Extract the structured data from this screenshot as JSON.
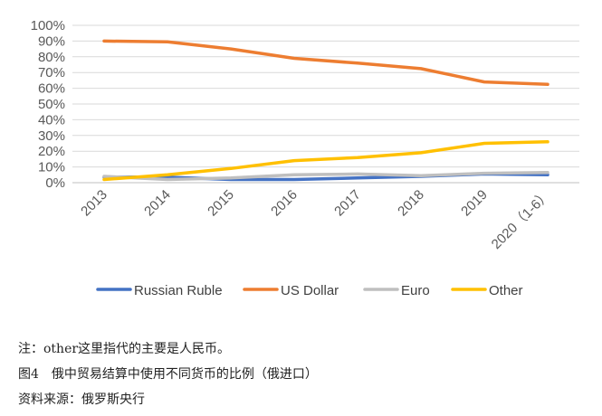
{
  "chart_data": {
    "type": "line",
    "title": "",
    "xlabel": "",
    "ylabel": "",
    "ylim": [
      0,
      100
    ],
    "ytick_values": [
      0,
      10,
      20,
      30,
      40,
      50,
      60,
      70,
      80,
      90,
      100
    ],
    "ytick_labels": [
      "0%",
      "10%",
      "20%",
      "30%",
      "40%",
      "50%",
      "60%",
      "70%",
      "80%",
      "90%",
      "100%"
    ],
    "categories": [
      "2013",
      "2014",
      "2015",
      "2016",
      "2017",
      "2018",
      "2019",
      "2020（1-6）"
    ],
    "grid": true,
    "legend_position": "bottom",
    "series": [
      {
        "name": "Russian Ruble",
        "color": "#4472C4",
        "values": [
          3.5,
          3.5,
          2,
          2,
          3,
          4,
          5.5,
          5
        ]
      },
      {
        "name": "US Dollar",
        "color": "#ED7D31",
        "values": [
          90,
          89.5,
          85,
          79,
          76,
          72.5,
          64,
          62.5
        ]
      },
      {
        "name": "Euro",
        "color": "#BFBFBF",
        "values": [
          4,
          2,
          3,
          5,
          5.5,
          4.5,
          6,
          6.5
        ]
      },
      {
        "name": "Other",
        "color": "#FFC000",
        "values": [
          2,
          5,
          9,
          14,
          16,
          19,
          25,
          26
        ]
      }
    ]
  },
  "captions": {
    "note": "注：other这里指代的主要是人民币。",
    "figure_title": "图4　俄中贸易结算中使用不同货币的比例（俄进口）",
    "source": "资料来源：俄罗斯央行"
  }
}
